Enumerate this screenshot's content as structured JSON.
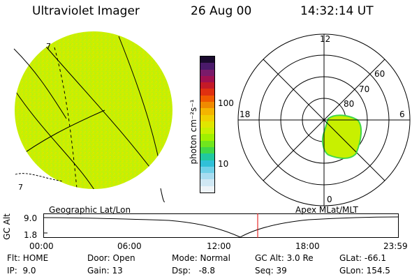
{
  "header": {
    "title": "Ultraviolet Imager",
    "date": "26 Aug 00",
    "time": "14:32:14 UT"
  },
  "colorbar": {
    "unit_label": "photon cm⁻²s⁻¹",
    "tick_100": "100",
    "tick_10": "10",
    "colors": [
      "#1a0a2e",
      "#4a1a6a",
      "#7a1a6a",
      "#a01050",
      "#c41a28",
      "#e03010",
      "#f05a00",
      "#f08a00",
      "#f4b400",
      "#f0d000",
      "#e0e600",
      "#c8f000",
      "#a0f000",
      "#70e61e",
      "#40d848",
      "#20c8a0",
      "#30c0d8",
      "#70d0e8",
      "#a8dcf0",
      "#d0e8f4",
      "#eef4f8"
    ]
  },
  "geo_map": {
    "label": "Geographic Lat/Lon",
    "fill_color": "#c8f000",
    "tick_7_top": "7",
    "tick_7_bottom": "7"
  },
  "polar_map": {
    "label": "Apex MLat/MLT",
    "mlt_top": "12",
    "mlt_left": "18",
    "mlt_right": "6",
    "mlt_bottom": "0",
    "lat_60": "60",
    "lat_70": "70",
    "lat_80": "80"
  },
  "altitude_strip": {
    "axis_label": "GC Alt",
    "y_top": "9.0",
    "y_bottom": "1.8",
    "time_ticks": [
      "00:00",
      "06:00",
      "12:00",
      "18:00",
      "23:59"
    ]
  },
  "status": {
    "flt": "Flt: HOME",
    "ip": "IP:  9.0",
    "door": "Door: Open",
    "gain": "Gain: 13",
    "mode": "Mode: Normal",
    "dsp": "Dsp:   -8.8",
    "gcalt": "GC Alt: 3.0 Re",
    "seq": "Seq: 39",
    "glat": "GLat: -66.1",
    "glon": "GLon: 154.5"
  }
}
